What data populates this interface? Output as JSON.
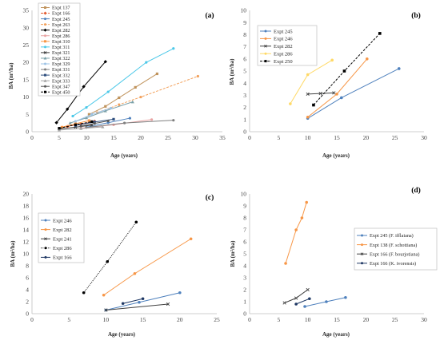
{
  "chart_data": [
    {
      "panel_label": "(a)",
      "type": "line",
      "xlabel": "Age (years)",
      "ylabel": "BA (m²/ha)",
      "xlim": [
        0,
        35
      ],
      "ylim": [
        0,
        35
      ],
      "xticks": [
        0,
        5,
        10,
        15,
        20,
        25,
        30,
        35
      ],
      "yticks": [
        0,
        5,
        10,
        15,
        20,
        25,
        30,
        35
      ],
      "grid": false,
      "legend": "top-left",
      "series": [
        {
          "name": "Expt 137",
          "color": "#c0935c",
          "line_style": "solid",
          "marker": "square",
          "points": [
            [
              10.5,
              5
            ],
            [
              13.5,
              7.3
            ],
            [
              16,
              9.8
            ],
            [
              19,
              12.8
            ],
            [
              23,
              16.7
            ]
          ]
        },
        {
          "name": "Expt 166",
          "color": "#e2572c",
          "line_style": "dashed",
          "marker": "diamond",
          "points": [
            [
              6.5,
              1.5
            ],
            [
              9,
              2.2
            ],
            [
              11.5,
              3
            ]
          ]
        },
        {
          "name": "Expt 245",
          "color": "#4f81bd",
          "line_style": "solid",
          "marker": "circle",
          "points": [
            [
              10,
              1.3
            ],
            [
              14,
              2.6
            ],
            [
              18,
              3.9
            ]
          ]
        },
        {
          "name": "Expt 263",
          "color": "#f2a15c",
          "line_style": "dashed",
          "marker": "circle",
          "points": [
            [
              12,
              5.5
            ],
            [
              16,
              7.8
            ],
            [
              20,
              10
            ],
            [
              30.5,
              16
            ]
          ]
        },
        {
          "name": "Expt 282",
          "color": "#000000",
          "line_style": "solid",
          "marker": "diamond",
          "points": [
            [
              4.5,
              2.6
            ],
            [
              6.5,
              6.5
            ],
            [
              9.5,
              13
            ],
            [
              13.5,
              20.2
            ]
          ]
        },
        {
          "name": "Expt 286",
          "color": "#e9a3a3",
          "line_style": "solid",
          "marker": "circle",
          "points": [
            [
              9,
              1
            ],
            [
              15,
              2
            ],
            [
              22,
              3.5
            ]
          ]
        },
        {
          "name": "Expt 310",
          "color": "#f79646",
          "line_style": "solid",
          "marker": "square",
          "points": [
            [
              5.5,
              1.3
            ],
            [
              8,
              2.3
            ],
            [
              10.5,
              3.2
            ]
          ]
        },
        {
          "name": "Expt 311",
          "color": "#4bc8e8",
          "line_style": "solid",
          "marker": "circle",
          "points": [
            [
              7.5,
              4.5
            ],
            [
              10,
              7
            ],
            [
              14,
              11.5
            ],
            [
              21,
              20
            ],
            [
              26,
              24
            ]
          ]
        },
        {
          "name": "Expt 321",
          "color": "#3a3a3a",
          "line_style": "solid",
          "marker": "x",
          "points": [
            [
              5,
              0.8
            ],
            [
              8,
              1.3
            ],
            [
              11,
              1.9
            ]
          ]
        },
        {
          "name": "Expt 322",
          "color": "#7aa0a8",
          "line_style": "solid",
          "marker": "triangle",
          "points": [
            [
              7,
              2.5
            ],
            [
              10,
              4
            ],
            [
              13.5,
              6
            ],
            [
              18.5,
              8.6
            ]
          ]
        },
        {
          "name": "Expt 329",
          "color": "#9dc3e6",
          "line_style": "solid",
          "marker": "circle",
          "points": [
            [
              8,
              3
            ],
            [
              11,
              5
            ],
            [
              14.5,
              6.8
            ]
          ]
        },
        {
          "name": "Expt 331",
          "color": "#7f7f7f",
          "line_style": "solid",
          "marker": "circle",
          "points": [
            [
              10,
              1.2
            ],
            [
              17,
              2.5
            ],
            [
              26,
              3.3
            ]
          ]
        },
        {
          "name": "Expt 332",
          "color": "#2f4f7f",
          "line_style": "solid",
          "marker": "square",
          "points": [
            [
              8,
              1.8
            ],
            [
              11.5,
              2.8
            ],
            [
              15,
              3.6
            ]
          ]
        },
        {
          "name": "Expt 333",
          "color": "#a5a5a5",
          "line_style": "solid",
          "marker": "triangle",
          "points": [
            [
              5,
              0.5
            ],
            [
              9,
              0.9
            ],
            [
              13,
              1.4
            ]
          ]
        },
        {
          "name": "Expt 347",
          "color": "#595959",
          "line_style": "solid",
          "marker": "circle",
          "points": [
            [
              9,
              1.6
            ],
            [
              11.5,
              2.4
            ],
            [
              14,
              3.1
            ]
          ]
        },
        {
          "name": "Expt 450",
          "color": "#000000",
          "line_style": "dashed",
          "marker": "square",
          "points": [
            [
              5,
              1
            ],
            [
              8,
              2
            ],
            [
              11,
              2.9
            ]
          ]
        }
      ]
    },
    {
      "panel_label": "(b)",
      "type": "line",
      "xlabel": "Age (years)",
      "ylabel": "BA (m²/ha)",
      "xlim": [
        0,
        30
      ],
      "ylim": [
        0,
        10
      ],
      "xticks": [
        0,
        5,
        10,
        15,
        20,
        25,
        30
      ],
      "yticks": [
        0,
        1,
        2,
        3,
        4,
        5,
        6,
        7,
        8,
        9,
        10
      ],
      "grid": false,
      "legend": "top-left",
      "series": [
        {
          "name": "Expt 245",
          "color": "#4f81bd",
          "line_style": "solid",
          "marker": "circle",
          "points": [
            [
              10,
              1.1
            ],
            [
              15.8,
              2.8
            ],
            [
              25.7,
              5.2
            ]
          ]
        },
        {
          "name": "Expt 246",
          "color": "#f79646",
          "line_style": "solid",
          "marker": "circle",
          "points": [
            [
              10,
              1.2
            ],
            [
              15,
              3.1
            ],
            [
              20.2,
              6
            ]
          ]
        },
        {
          "name": "Expt 282",
          "color": "#404040",
          "line_style": "solid",
          "marker": "x",
          "points": [
            [
              10,
              3.1
            ],
            [
              12.2,
              3.15
            ],
            [
              14.5,
              3.2
            ]
          ]
        },
        {
          "name": "Expt 286",
          "color": "#ffd966",
          "line_style": "solid",
          "marker": "circle",
          "points": [
            [
              7,
              2.3
            ],
            [
              10,
              4.7
            ],
            [
              14.2,
              5.9
            ]
          ]
        },
        {
          "name": "Expt 250",
          "color": "#000000",
          "line_style": "dashed",
          "marker": "square",
          "points": [
            [
              11,
              2.2
            ],
            [
              16.3,
              5
            ],
            [
              22.4,
              8.1
            ]
          ]
        }
      ]
    },
    {
      "panel_label": "(c)",
      "type": "line",
      "xlabel": "Age (years)",
      "ylabel": "BA (m²/ha)",
      "xlim": [
        0,
        25
      ],
      "ylim": [
        0,
        20
      ],
      "xticks": [
        0,
        5,
        10,
        15,
        20,
        25
      ],
      "yticks": [
        0,
        2,
        4,
        6,
        8,
        10,
        12,
        14,
        16,
        18,
        20
      ],
      "grid": false,
      "legend": "top-left",
      "series": [
        {
          "name": "Expt 246",
          "color": "#4f81bd",
          "line_style": "solid",
          "marker": "circle",
          "points": [
            [
              10,
              0.6
            ],
            [
              14.5,
              1.9
            ],
            [
              20,
              3.5
            ]
          ]
        },
        {
          "name": "Expt 282",
          "color": "#f79646",
          "line_style": "solid",
          "marker": "circle",
          "points": [
            [
              9.7,
              3.1
            ],
            [
              13.9,
              6.7
            ],
            [
              21.5,
              12.5
            ]
          ]
        },
        {
          "name": "Expt 241",
          "color": "#404040",
          "line_style": "solid",
          "marker": "x",
          "points": [
            [
              10,
              0.6
            ],
            [
              18.4,
              1.6
            ]
          ]
        },
        {
          "name": "Expt 286",
          "color": "#000000",
          "line_style": "dotted",
          "marker": "circle",
          "points": [
            [
              7,
              3.5
            ],
            [
              10.2,
              8.7
            ],
            [
              14.1,
              15.3
            ]
          ]
        },
        {
          "name": "Expt 166",
          "color": "#1f3864",
          "line_style": "solid",
          "marker": "circle",
          "points": [
            [
              12.3,
              1.7
            ],
            [
              15,
              2.5
            ]
          ]
        }
      ]
    },
    {
      "panel_label": "(d)",
      "type": "line",
      "xlabel": "Age (years)",
      "ylabel": "BA (m²/ha)",
      "xlim": [
        0,
        30
      ],
      "ylim": [
        0,
        10
      ],
      "xticks": [
        0,
        5,
        10,
        15,
        20,
        25,
        30
      ],
      "yticks": [
        0,
        1,
        2,
        3,
        4,
        5,
        6,
        7,
        8,
        9,
        10
      ],
      "grid": false,
      "legend": "right",
      "series": [
        {
          "name": "Expt 245 (F. ifflaiana)",
          "color": "#4f81bd",
          "line_style": "solid",
          "marker": "circle",
          "points": [
            [
              9.5,
              0.6
            ],
            [
              13.2,
              1.0
            ],
            [
              16.5,
              1.35
            ]
          ]
        },
        {
          "name": "Expt 138 (F. schottiana)",
          "color": "#f79646",
          "line_style": "solid",
          "marker": "circle",
          "points": [
            [
              6.2,
              4.2
            ],
            [
              8,
              7
            ],
            [
              9,
              8
            ],
            [
              9.8,
              9.3
            ]
          ]
        },
        {
          "name": "Expt 166 (F. bourjotiana)",
          "color": "#404040",
          "line_style": "solid",
          "marker": "x",
          "points": [
            [
              6,
              0.9
            ],
            [
              8,
              1.3
            ],
            [
              10,
              2
            ]
          ]
        },
        {
          "name": "Expt 166 (K. ivorensis)",
          "color": "#1f3864",
          "line_style": "solid",
          "marker": "circle",
          "points": [
            [
              8,
              0.8
            ],
            [
              10.3,
              1.25
            ]
          ]
        }
      ]
    }
  ]
}
